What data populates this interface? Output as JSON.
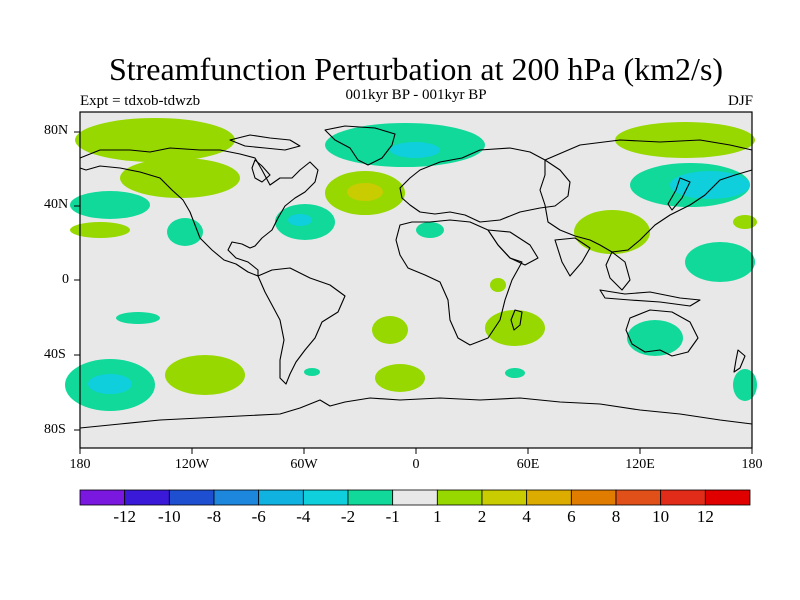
{
  "title": "Streamfunction Perturbation at 200 hPa (km2/s)",
  "subtitle": "001kyr BP - 001kyr BP",
  "expt": "Expt = tdxob-tdwzb",
  "season": "DJF",
  "lat_labels": [
    "80N",
    "40N",
    "0",
    "40S",
    "80S"
  ],
  "lon_labels": [
    "180",
    "120W",
    "60W",
    "0",
    "60E",
    "120E",
    "180"
  ],
  "colorbar": {
    "labels": [
      "-12",
      "-10",
      "-8",
      "-6",
      "-4",
      "-2",
      "-1",
      "1",
      "2",
      "4",
      "6",
      "8",
      "10",
      "12"
    ],
    "colors": [
      "#7a18e0",
      "#3a1ad8",
      "#1e4fd0",
      "#1d86dd",
      "#10b2e0",
      "#0fcfdc",
      "#10d99a",
      "#e8e8e8",
      "#96d800",
      "#c8cc00",
      "#dcac00",
      "#e07c00",
      "#e05018",
      "#e02c18",
      "#e00000"
    ]
  },
  "colors": {
    "background": "#e8e8e8",
    "positive_1_2": "#96d800",
    "positive_2_4": "#c8cc00",
    "negative_1_2": "#10d99a",
    "negative_2_4": "#0fcfdc"
  }
}
